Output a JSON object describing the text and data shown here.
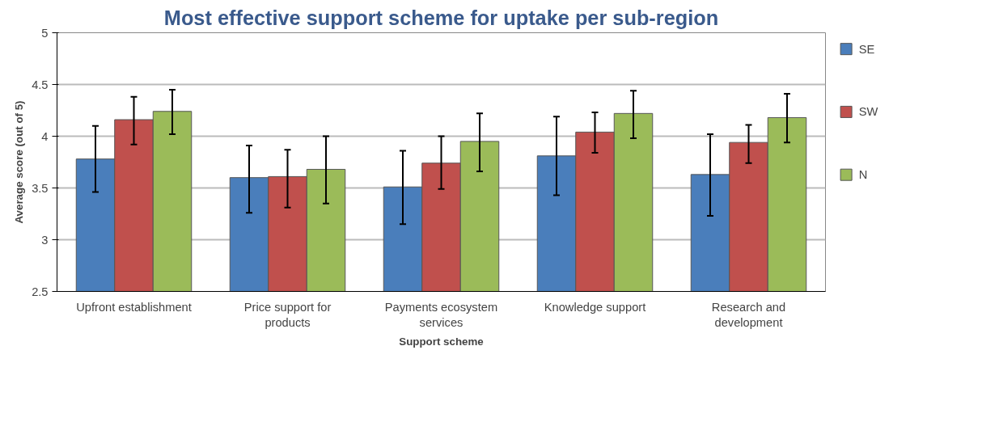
{
  "chart_data": {
    "type": "bar",
    "title": "Most effective support scheme for uptake per sub-region",
    "xlabel": "Support scheme",
    "ylabel": "Average score (out of 5)",
    "categories": [
      "Upfront establishment",
      "Price support for products",
      "Payments ecosystem services",
      "Knowledge support",
      "Research and development"
    ],
    "series": [
      {
        "name": "SE",
        "color": "#4a7ebb",
        "values": [
          3.78,
          3.6,
          3.51,
          3.81,
          3.63
        ],
        "errors": [
          [
            3.46,
            4.1
          ],
          [
            3.26,
            3.91
          ],
          [
            3.15,
            3.86
          ],
          [
            3.43,
            4.19
          ],
          [
            3.23,
            4.02
          ]
        ]
      },
      {
        "name": "SW",
        "color": "#c0504d",
        "values": [
          4.16,
          3.61,
          3.74,
          4.04,
          3.94
        ],
        "errors": [
          [
            3.92,
            4.38
          ],
          [
            3.31,
            3.87
          ],
          [
            3.49,
            4.0
          ],
          [
            3.84,
            4.23
          ],
          [
            3.74,
            4.11
          ]
        ]
      },
      {
        "name": "N",
        "color": "#9bbb59",
        "values": [
          4.24,
          3.68,
          3.95,
          4.22,
          4.18
        ],
        "errors": [
          [
            4.02,
            4.45
          ],
          [
            3.35,
            4.0
          ],
          [
            3.66,
            4.22
          ],
          [
            3.98,
            4.44
          ],
          [
            3.94,
            4.41
          ]
        ]
      }
    ],
    "ylim": [
      2.5,
      5
    ],
    "yticks": [
      2.5,
      3,
      3.5,
      4,
      4.5,
      5
    ],
    "grid": "y",
    "legend": "right"
  }
}
